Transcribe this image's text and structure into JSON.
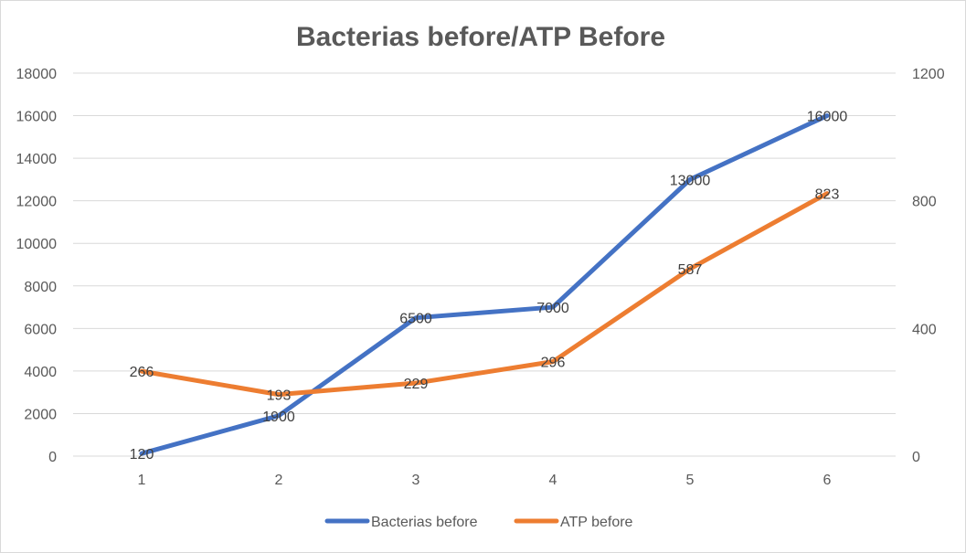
{
  "chart_data": {
    "type": "line",
    "title": "Bacterias before/ATP Before",
    "categories": [
      "1",
      "2",
      "3",
      "4",
      "5",
      "6"
    ],
    "y_left": {
      "min": 0,
      "max": 18000,
      "ticks": [
        "0",
        "2000",
        "4000",
        "6000",
        "8000",
        "10000",
        "12000",
        "14000",
        "16000",
        "18000"
      ]
    },
    "y_right": {
      "min": 0,
      "max": 1200,
      "ticks": [
        "0",
        "400",
        "800",
        "1200"
      ]
    },
    "series": [
      {
        "name": "Bacterias before",
        "axis": "left",
        "color": "#4472c4",
        "values": [
          120,
          1900,
          6500,
          7000,
          13000,
          16000
        ],
        "labels": [
          "120",
          "1900",
          "6500",
          "7000",
          "13000",
          "16000"
        ]
      },
      {
        "name": "ATP before",
        "axis": "right",
        "color": "#ed7d31",
        "values": [
          266,
          193,
          229,
          296,
          587,
          823
        ],
        "labels": [
          "266",
          "193",
          "229",
          "296",
          "587",
          "823"
        ]
      }
    ],
    "grid": true,
    "legend": "bottom"
  }
}
